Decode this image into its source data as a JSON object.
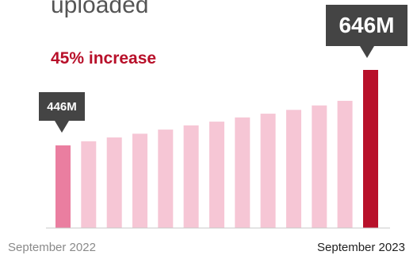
{
  "headline": "uploaded",
  "increase_text": "45% increase",
  "callouts": {
    "start": "446M",
    "end": "646M"
  },
  "colors": {
    "start_bar": "#ea7ea0",
    "middle_bars": "#f6c6d5",
    "end_bar": "#b8102a",
    "callout_bg": "#444444",
    "accent_text": "#b8102a"
  },
  "chart_data": {
    "type": "bar",
    "categories": [
      "September 2022",
      "",
      "",
      "",
      "",
      "",
      "",
      "",
      "",
      "",
      "",
      "",
      "September 2023"
    ],
    "values": [
      446,
      457,
      467,
      477,
      488,
      499,
      509,
      520,
      530,
      540,
      552,
      564,
      646
    ],
    "unit": "M",
    "x_tick_labels": [
      "September 2022",
      "September 2023"
    ],
    "ylim": [
      0,
      646
    ],
    "grid": false,
    "legend": "none"
  }
}
